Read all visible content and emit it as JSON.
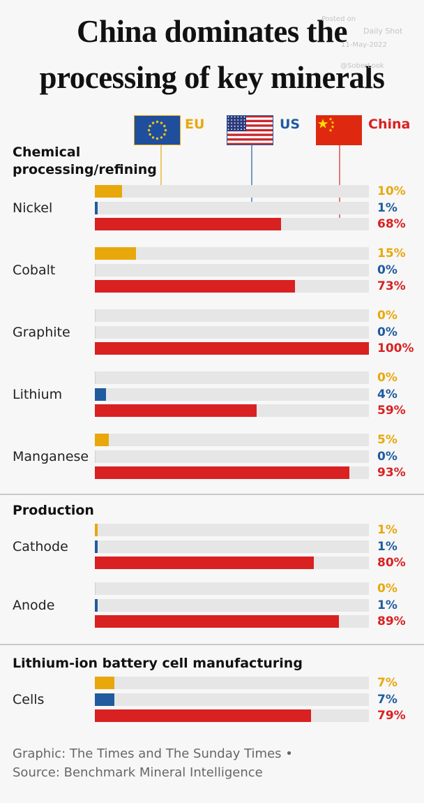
{
  "title": {
    "line1": "China dominates the",
    "line2": "processing of key minerals"
  },
  "watermark": {
    "line1": "Posted on",
    "line2": "Daily Shot",
    "line3": "11-May-2022",
    "line4": "@SoberLook"
  },
  "legend": {
    "eu": "EU",
    "us": "US",
    "china": "China"
  },
  "colors": {
    "eu": "#e8a80c",
    "us": "#1f5b9e",
    "china": "#d92122",
    "track": "#e6e6e6"
  },
  "chart_data": {
    "type": "bar",
    "orientation": "horizontal",
    "unit": "%",
    "xlim": [
      0,
      100
    ],
    "series_order": [
      "EU",
      "US",
      "China"
    ],
    "sections": [
      {
        "title": "Chemical processing/refining",
        "categories": [
          {
            "name": "Nickel",
            "values": [
              10,
              1,
              68
            ],
            "labels": [
              "10%",
              "1%",
              "68%"
            ]
          },
          {
            "name": "Cobalt",
            "values": [
              15,
              0,
              73
            ],
            "labels": [
              "15%",
              "0%",
              "73%"
            ]
          },
          {
            "name": "Graphite",
            "values": [
              0,
              0,
              100
            ],
            "labels": [
              "0%",
              "0%",
              "100%"
            ]
          },
          {
            "name": "Lithium",
            "values": [
              0,
              4,
              59
            ],
            "labels": [
              "0%",
              "4%",
              "59%"
            ]
          },
          {
            "name": "Manganese",
            "values": [
              5,
              0,
              93
            ],
            "labels": [
              "5%",
              "0%",
              "93%"
            ]
          }
        ]
      },
      {
        "title": "Production",
        "categories": [
          {
            "name": "Cathode",
            "values": [
              1,
              1,
              80
            ],
            "labels": [
              "1%",
              "1%",
              "80%"
            ]
          },
          {
            "name": "Anode",
            "values": [
              0,
              1,
              89
            ],
            "labels": [
              "0%",
              "1%",
              "89%"
            ]
          }
        ]
      },
      {
        "title": "Lithium-ion battery cell manufacturing",
        "categories": [
          {
            "name": "Cells",
            "values": [
              7,
              7,
              79
            ],
            "labels": [
              "7%",
              "7%",
              "79%"
            ]
          }
        ]
      }
    ]
  },
  "footer": {
    "line1": "Graphic: The Times and The Sunday Times •",
    "line2": "Source: Benchmark Mineral Intelligence"
  }
}
